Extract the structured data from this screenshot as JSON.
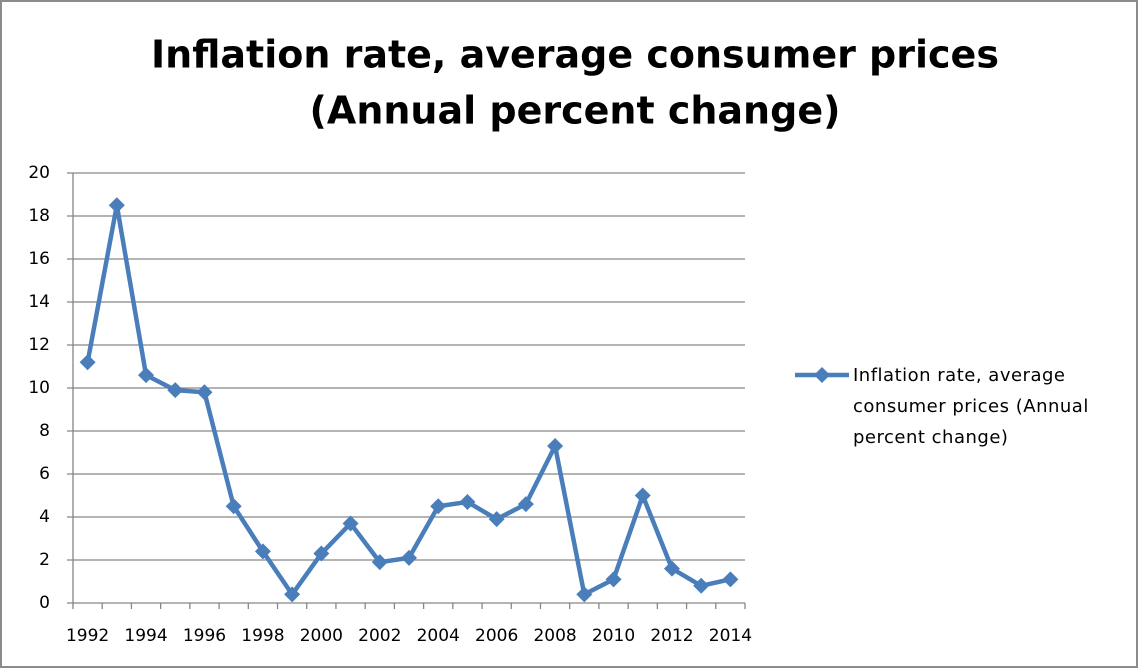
{
  "chart_data": {
    "type": "line",
    "title": [
      "Inflation rate, average consumer prices",
      "(Annual percent change)"
    ],
    "categories": [
      "1992",
      null,
      "1994",
      null,
      "1996",
      null,
      "1998",
      null,
      "2000",
      null,
      "2002",
      null,
      "2004",
      null,
      "2006",
      null,
      "2008",
      null,
      "2010",
      null,
      "2012",
      null,
      "2014"
    ],
    "series": [
      {
        "name": "Inflation rate, average consumer prices (Annual percent change)",
        "color": "#4a7ebb",
        "values": [
          11.2,
          18.5,
          10.6,
          9.9,
          9.8,
          4.5,
          2.4,
          0.4,
          2.3,
          3.7,
          1.9,
          2.1,
          4.5,
          4.7,
          3.9,
          4.6,
          7.3,
          0.4,
          1.1,
          5.0,
          1.6,
          0.8,
          1.1
        ]
      }
    ],
    "ylim": [
      0,
      20
    ],
    "yticks": [
      0,
      2,
      4,
      6,
      8,
      10,
      12,
      14,
      16,
      18,
      20
    ],
    "grid": true,
    "legend": "right"
  }
}
